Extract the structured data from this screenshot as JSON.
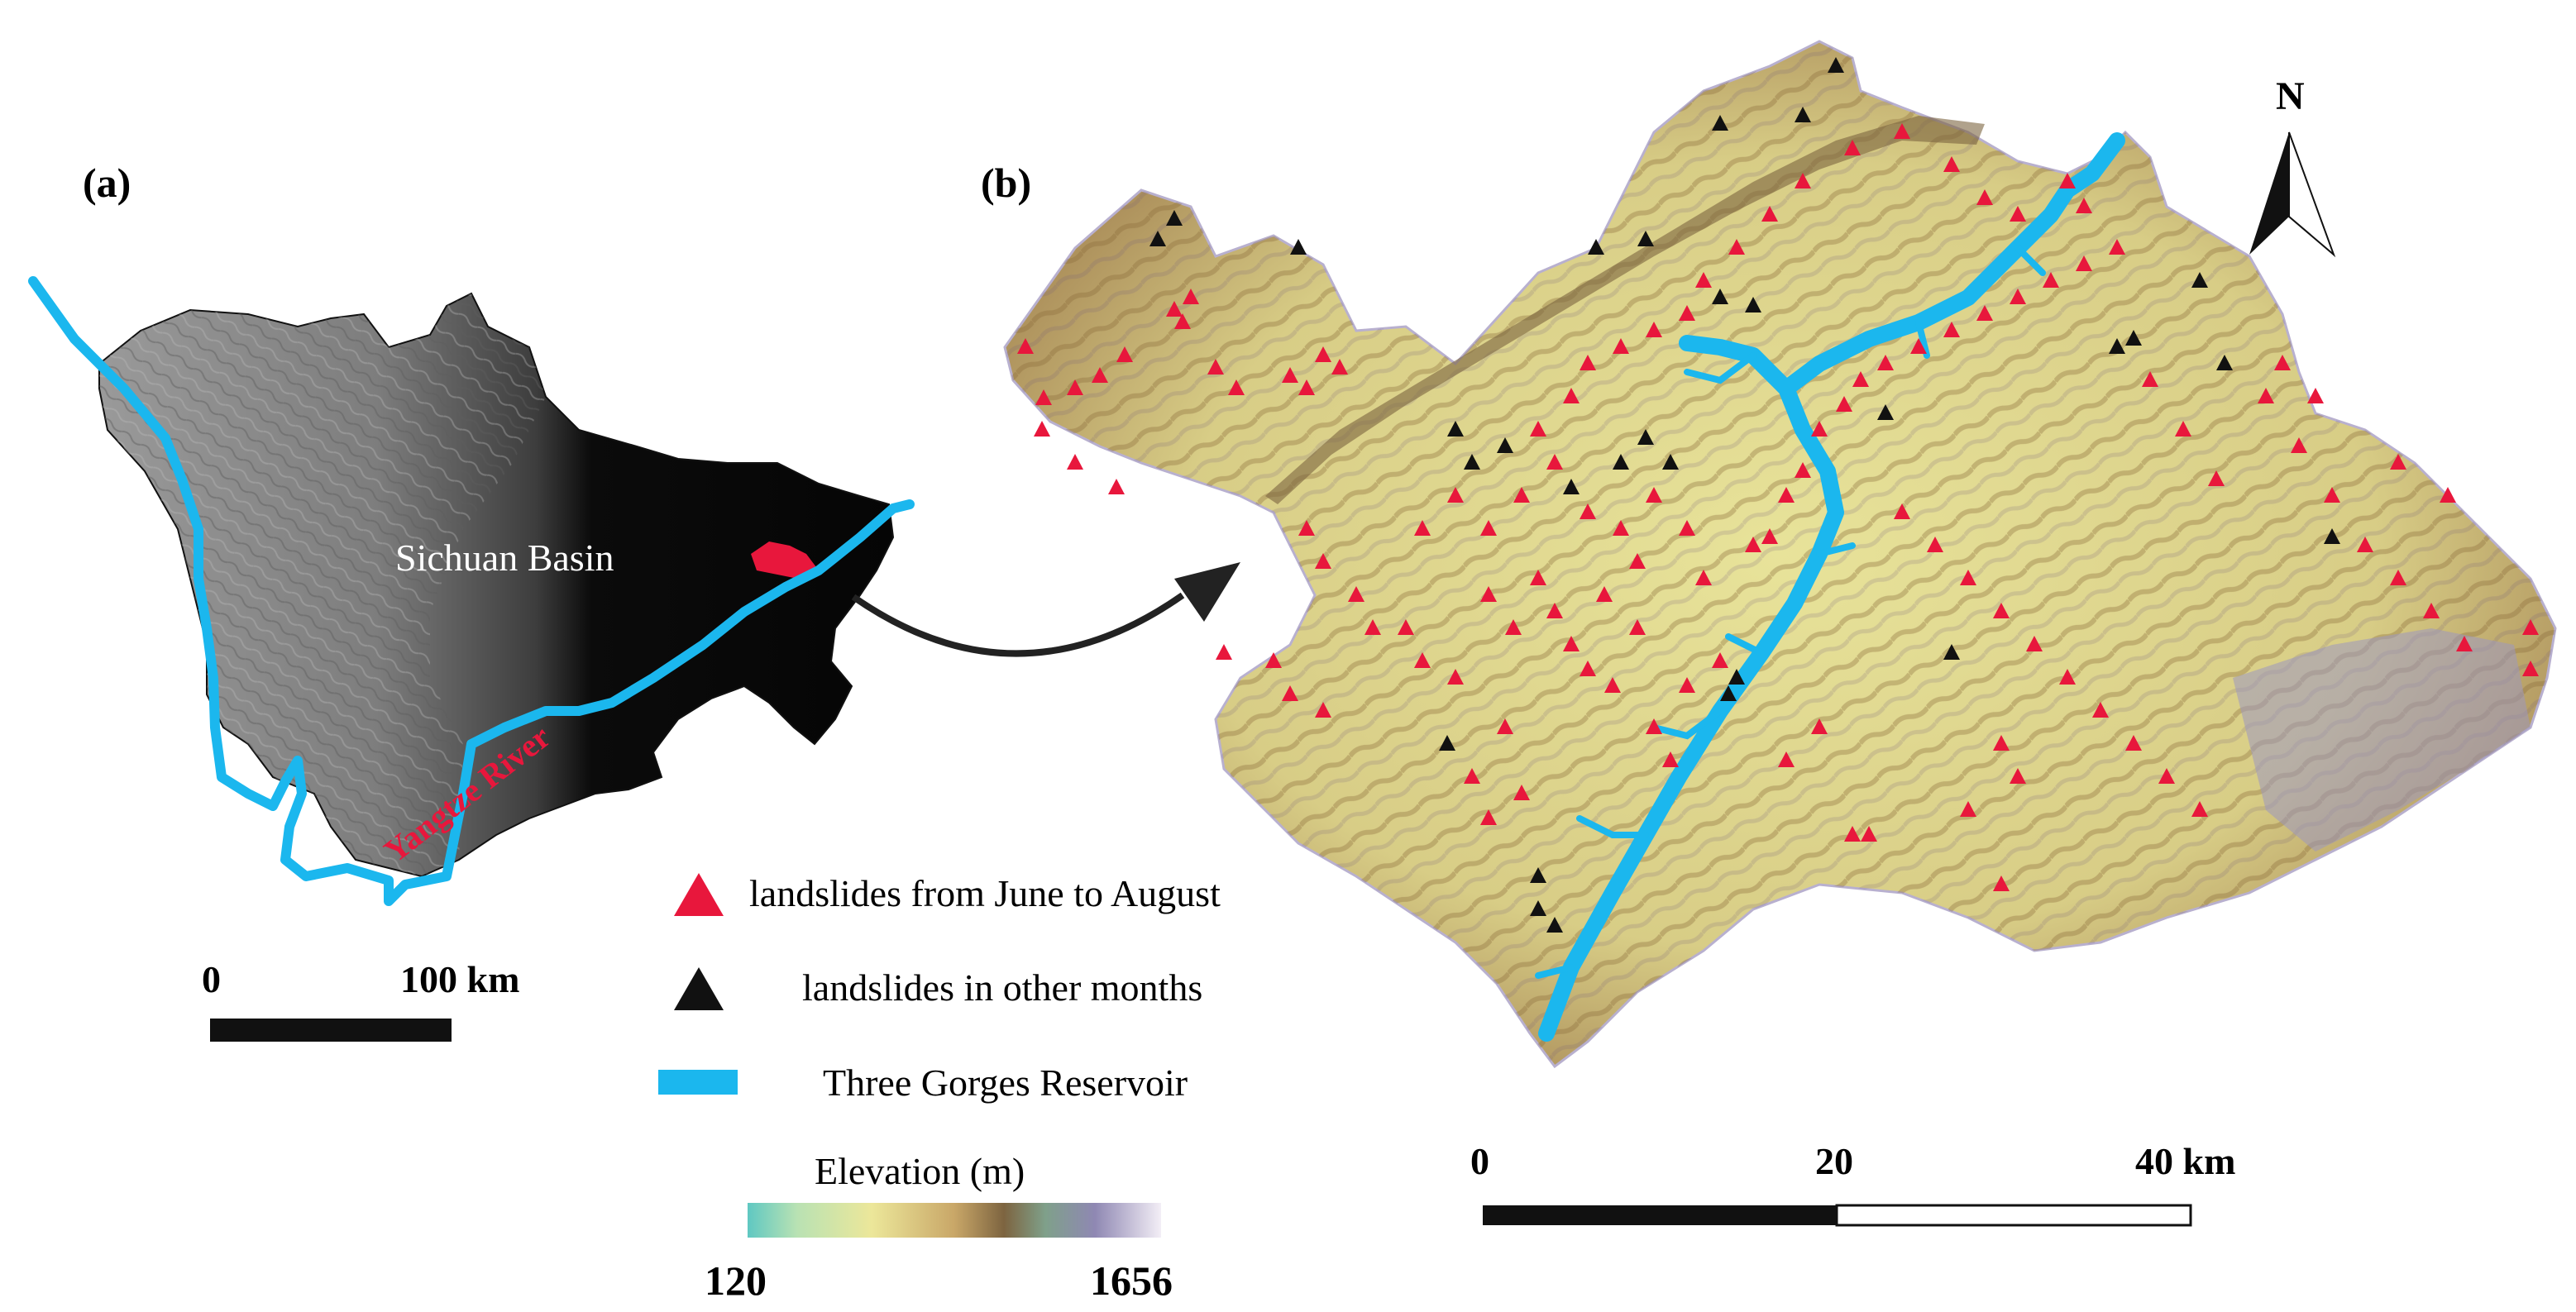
{
  "panel_a": {
    "label": "(a)",
    "basin_label": "Sichuan Basin",
    "river_label": "Yangtze River",
    "scalebar": {
      "start": "0",
      "end": "100 km"
    }
  },
  "panel_b": {
    "label": "(b)",
    "north_label": "N",
    "scalebar": {
      "start": "0",
      "mid": "20",
      "end": "40 km"
    }
  },
  "legend": {
    "items": [
      {
        "label": "landslides from June to August",
        "symbol": "red-triangle",
        "color": "#e8173c"
      },
      {
        "label": "landslides in  other months",
        "symbol": "black-triangle",
        "color": "#111111"
      },
      {
        "label": "Three Gorges Reservoir",
        "symbol": "blue-band",
        "color": "#1bb7ee"
      }
    ],
    "elevation_title": "Elevation (m)",
    "elevation_min": "120",
    "elevation_max": "1656"
  },
  "colors": {
    "reservoir": "#1bb7ee",
    "summer_landslide": "#e8173c",
    "other_landslide": "#111111",
    "terrain_low": "#7fd6c6",
    "terrain_mid": "#e7e39a",
    "terrain_high": "#8c6b3f",
    "terrain_top": "#d9d4e6"
  }
}
